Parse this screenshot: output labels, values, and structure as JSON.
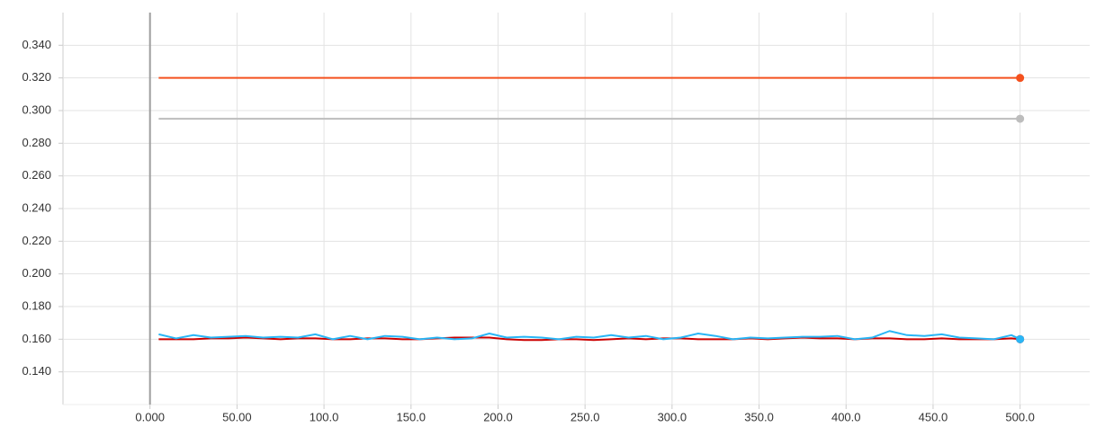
{
  "chart_data": {
    "type": "line",
    "x": [
      5,
      15,
      25,
      35,
      45,
      55,
      65,
      75,
      85,
      95,
      105,
      115,
      125,
      135,
      145,
      155,
      165,
      175,
      185,
      195,
      205,
      215,
      225,
      235,
      245,
      255,
      265,
      275,
      285,
      295,
      305,
      315,
      325,
      335,
      345,
      355,
      365,
      375,
      385,
      395,
      405,
      415,
      425,
      435,
      445,
      455,
      465,
      475,
      485,
      495,
      500
    ],
    "series": [
      {
        "color": "#bdbdbd",
        "values": [
          0.295,
          0.295,
          0.295,
          0.295,
          0.295,
          0.295,
          0.295,
          0.295,
          0.295,
          0.295,
          0.295,
          0.295,
          0.295,
          0.295,
          0.295,
          0.295,
          0.295,
          0.295,
          0.295,
          0.295,
          0.295,
          0.295,
          0.295,
          0.295,
          0.295,
          0.295,
          0.295,
          0.295,
          0.295,
          0.295,
          0.295,
          0.295,
          0.295,
          0.295,
          0.295,
          0.295,
          0.295,
          0.295,
          0.295,
          0.295,
          0.295,
          0.295,
          0.295,
          0.295,
          0.295,
          0.295,
          0.295,
          0.295,
          0.295,
          0.295,
          0.295
        ]
      },
      {
        "color": "#f4511e",
        "values": [
          0.32,
          0.32,
          0.32,
          0.32,
          0.32,
          0.32,
          0.32,
          0.32,
          0.32,
          0.32,
          0.32,
          0.32,
          0.32,
          0.32,
          0.32,
          0.32,
          0.32,
          0.32,
          0.32,
          0.32,
          0.32,
          0.32,
          0.32,
          0.32,
          0.32,
          0.32,
          0.32,
          0.32,
          0.32,
          0.32,
          0.32,
          0.32,
          0.32,
          0.32,
          0.32,
          0.32,
          0.32,
          0.32,
          0.32,
          0.32,
          0.32,
          0.32,
          0.32,
          0.32,
          0.32,
          0.32,
          0.32,
          0.32,
          0.32,
          0.32,
          0.32
        ]
      },
      {
        "color": "#cc0000",
        "values": [
          0.16,
          0.16,
          0.16,
          0.1605,
          0.1605,
          0.161,
          0.1605,
          0.16,
          0.1605,
          0.1605,
          0.16,
          0.16,
          0.1605,
          0.1605,
          0.16,
          0.16,
          0.1605,
          0.161,
          0.161,
          0.161,
          0.16,
          0.1595,
          0.1595,
          0.16,
          0.16,
          0.1595,
          0.16,
          0.1605,
          0.16,
          0.1605,
          0.1605,
          0.16,
          0.16,
          0.16,
          0.1605,
          0.16,
          0.1605,
          0.161,
          0.1605,
          0.1605,
          0.16,
          0.1605,
          0.1605,
          0.16,
          0.16,
          0.1605,
          0.16,
          0.16,
          0.16,
          0.1605,
          0.16
        ]
      },
      {
        "color": "#29b6f6",
        "values": [
          0.163,
          0.1605,
          0.1625,
          0.161,
          0.1615,
          0.162,
          0.161,
          0.1615,
          0.161,
          0.163,
          0.16,
          0.162,
          0.16,
          0.162,
          0.1615,
          0.16,
          0.161,
          0.16,
          0.1605,
          0.1635,
          0.161,
          0.1615,
          0.161,
          0.16,
          0.1615,
          0.161,
          0.1625,
          0.161,
          0.162,
          0.16,
          0.161,
          0.1635,
          0.162,
          0.16,
          0.161,
          0.1605,
          0.161,
          0.1615,
          0.1615,
          0.162,
          0.16,
          0.161,
          0.165,
          0.1625,
          0.162,
          0.163,
          0.161,
          0.1605,
          0.16,
          0.1625,
          0.16
        ]
      }
    ],
    "xlim": [
      -50,
      540
    ],
    "ylim": [
      0.12,
      0.36
    ],
    "xticks": [
      {
        "value": 0,
        "label": "0.000"
      },
      {
        "value": 50,
        "label": "50.00"
      },
      {
        "value": 100,
        "label": "100.0"
      },
      {
        "value": 150,
        "label": "150.0"
      },
      {
        "value": 200,
        "label": "200.0"
      },
      {
        "value": 250,
        "label": "250.0"
      },
      {
        "value": 300,
        "label": "300.0"
      },
      {
        "value": 350,
        "label": "350.0"
      },
      {
        "value": 400,
        "label": "400.0"
      },
      {
        "value": 450,
        "label": "450.0"
      },
      {
        "value": 500,
        "label": "500.0"
      }
    ],
    "yticks": [
      {
        "value": 0.14,
        "label": "0.140"
      },
      {
        "value": 0.16,
        "label": "0.160"
      },
      {
        "value": 0.18,
        "label": "0.180"
      },
      {
        "value": 0.2,
        "label": "0.200"
      },
      {
        "value": 0.22,
        "label": "0.220"
      },
      {
        "value": 0.24,
        "label": "0.240"
      },
      {
        "value": 0.26,
        "label": "0.260"
      },
      {
        "value": 0.28,
        "label": "0.280"
      },
      {
        "value": 0.3,
        "label": "0.300"
      },
      {
        "value": 0.32,
        "label": "0.320"
      },
      {
        "value": 0.34,
        "label": "0.340"
      }
    ],
    "grid": true
  }
}
